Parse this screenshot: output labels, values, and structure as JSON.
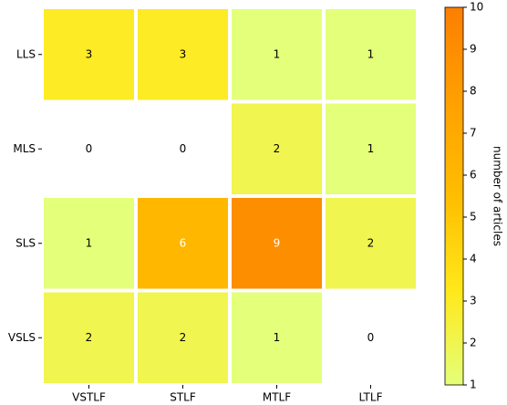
{
  "chart_data": {
    "type": "heatmap",
    "x_categories": [
      "VSTLF",
      "STLF",
      "MTLF",
      "LTLF"
    ],
    "y_categories": [
      "LLS",
      "MLS",
      "SLS",
      "VSLS"
    ],
    "values": [
      [
        3,
        3,
        1,
        1
      ],
      [
        0,
        0,
        2,
        1
      ],
      [
        1,
        6,
        9,
        2
      ],
      [
        2,
        2,
        1,
        0
      ]
    ],
    "colorscale": [
      "#e4ff7a",
      "#ffe81a",
      "#ffbd00",
      "#ffa000",
      "#fc7f00"
    ],
    "zlim": [
      1,
      10
    ],
    "zticks": [
      1,
      2,
      3,
      4,
      5,
      6,
      7,
      8,
      9,
      10
    ],
    "colorbar_label": "number of articles"
  }
}
